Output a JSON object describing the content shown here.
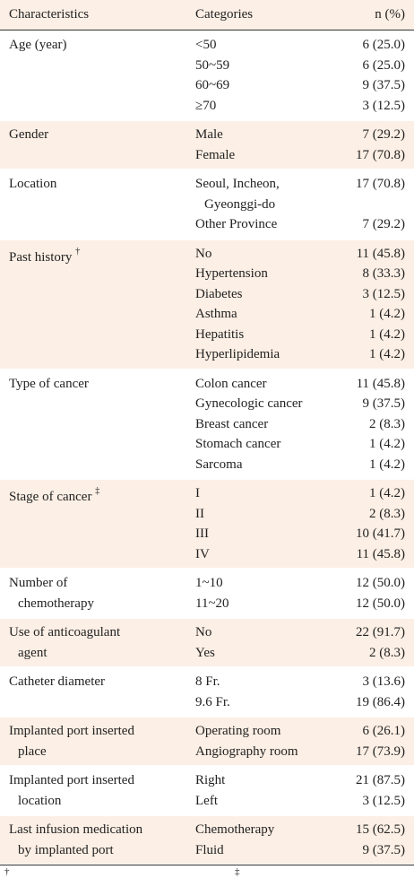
{
  "table": {
    "header": [
      "Characteristics",
      "Categories",
      "n (%)"
    ],
    "groups": [
      {
        "characteristic": [
          "Age (year)"
        ],
        "rows": [
          {
            "category": [
              "<50"
            ],
            "n": "6 (25.0)"
          },
          {
            "category": [
              "50~59"
            ],
            "n": "6 (25.0)"
          },
          {
            "category": [
              "60~69"
            ],
            "n": "9 (37.5)"
          },
          {
            "category": [
              "≥70"
            ],
            "n": "3 (12.5)"
          }
        ]
      },
      {
        "characteristic": [
          "Gender"
        ],
        "rows": [
          {
            "category": [
              "Male"
            ],
            "n": "7 (29.2)"
          },
          {
            "category": [
              "Female"
            ],
            "n": "17 (70.8)"
          }
        ]
      },
      {
        "characteristic": [
          "Location"
        ],
        "rows": [
          {
            "category": [
              "Seoul, Incheon,",
              "Gyeonggi-do"
            ],
            "n": "17 (70.8)"
          },
          {
            "category": [
              "Other Province"
            ],
            "n": "7 (29.2)"
          }
        ]
      },
      {
        "characteristic": [
          "Past history"
        ],
        "marker": "†",
        "rows": [
          {
            "category": [
              "No"
            ],
            "n": "11 (45.8)"
          },
          {
            "category": [
              "Hypertension"
            ],
            "n": "8 (33.3)"
          },
          {
            "category": [
              "Diabetes"
            ],
            "n": "3 (12.5)"
          },
          {
            "category": [
              "Asthma"
            ],
            "n": "1 (4.2)"
          },
          {
            "category": [
              "Hepatitis"
            ],
            "n": "1 (4.2)"
          },
          {
            "category": [
              "Hyperlipidemia"
            ],
            "n": "1 (4.2)"
          }
        ]
      },
      {
        "characteristic": [
          "Type of cancer"
        ],
        "rows": [
          {
            "category": [
              "Colon cancer"
            ],
            "n": "11 (45.8)"
          },
          {
            "category": [
              "Gynecologic cancer"
            ],
            "n": "9 (37.5)"
          },
          {
            "category": [
              "Breast cancer"
            ],
            "n": "2 (8.3)"
          },
          {
            "category": [
              "Stomach cancer"
            ],
            "n": "1 (4.2)"
          },
          {
            "category": [
              "Sarcoma"
            ],
            "n": "1 (4.2)"
          }
        ]
      },
      {
        "characteristic": [
          "Stage of cancer"
        ],
        "marker": "‡",
        "rows": [
          {
            "category": [
              "I"
            ],
            "n": "1 (4.2)"
          },
          {
            "category": [
              "II"
            ],
            "n": "2 (8.3)"
          },
          {
            "category": [
              "III"
            ],
            "n": "10 (41.7)"
          },
          {
            "category": [
              "IV"
            ],
            "n": "11 (45.8)"
          }
        ]
      },
      {
        "characteristic": [
          "Number of",
          "chemotherapy"
        ],
        "rows": [
          {
            "category": [
              "1~10"
            ],
            "n": "12 (50.0)"
          },
          {
            "category": [
              "11~20"
            ],
            "n": "12 (50.0)"
          }
        ]
      },
      {
        "characteristic": [
          "Use of anticoagulant",
          "agent"
        ],
        "rows": [
          {
            "category": [
              "No"
            ],
            "n": "22 (91.7)"
          },
          {
            "category": [
              "Yes"
            ],
            "n": "2 (8.3)"
          }
        ]
      },
      {
        "characteristic": [
          "Catheter diameter"
        ],
        "rows": [
          {
            "category": [
              "8 Fr."
            ],
            "n": "3 (13.6)"
          },
          {
            "category": [
              "9.6 Fr."
            ],
            "n": "19 (86.4)"
          }
        ]
      },
      {
        "characteristic": [
          "Implanted port inserted",
          "place"
        ],
        "rows": [
          {
            "category": [
              "Operating room"
            ],
            "n": "6 (26.1)"
          },
          {
            "category": [
              "Angiography room"
            ],
            "n": "17 (73.9)"
          }
        ]
      },
      {
        "characteristic": [
          "Implanted port inserted",
          "location"
        ],
        "rows": [
          {
            "category": [
              "Right"
            ],
            "n": "21 (87.5)"
          },
          {
            "category": [
              "Left"
            ],
            "n": "3 (12.5)"
          }
        ]
      },
      {
        "characteristic": [
          "Last infusion medication",
          "by implanted port"
        ],
        "rows": [
          {
            "category": [
              "Chemotherapy"
            ],
            "n": "15 (62.5)"
          },
          {
            "category": [
              "Fluid"
            ],
            "n": "9 (37.5)"
          }
        ]
      }
    ],
    "footnotes": [
      "†",
      "‡"
    ]
  }
}
